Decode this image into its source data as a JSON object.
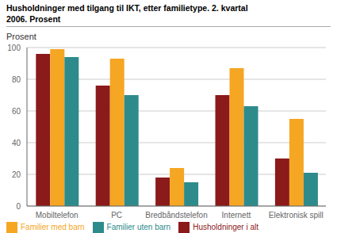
{
  "chart_data": {
    "type": "bar",
    "title": "Husholdninger med tilgang til IKT, etter familietype. 2. kvartal\n2006. Prosent",
    "ylabel": "Prosent",
    "categories": [
      "Mobiltelefon",
      "PC",
      "Bredbåndstelefon",
      "Internett",
      "Elektronisk spill"
    ],
    "series": [
      {
        "name": "Husholdninger i alt",
        "color": "#8B1A1A",
        "values": [
          96,
          76,
          18,
          70,
          30
        ]
      },
      {
        "name": "Familier med barn",
        "color": "#F5A623",
        "values": [
          99,
          93,
          24,
          87,
          55
        ]
      },
      {
        "name": "Familier uten barn",
        "color": "#2E8B8B",
        "values": [
          94,
          70,
          15,
          63,
          21
        ]
      }
    ],
    "ylim": [
      0,
      100
    ],
    "yticks": [
      0,
      20,
      40,
      60,
      80,
      100
    ],
    "grid": true,
    "legend": "lower left"
  }
}
